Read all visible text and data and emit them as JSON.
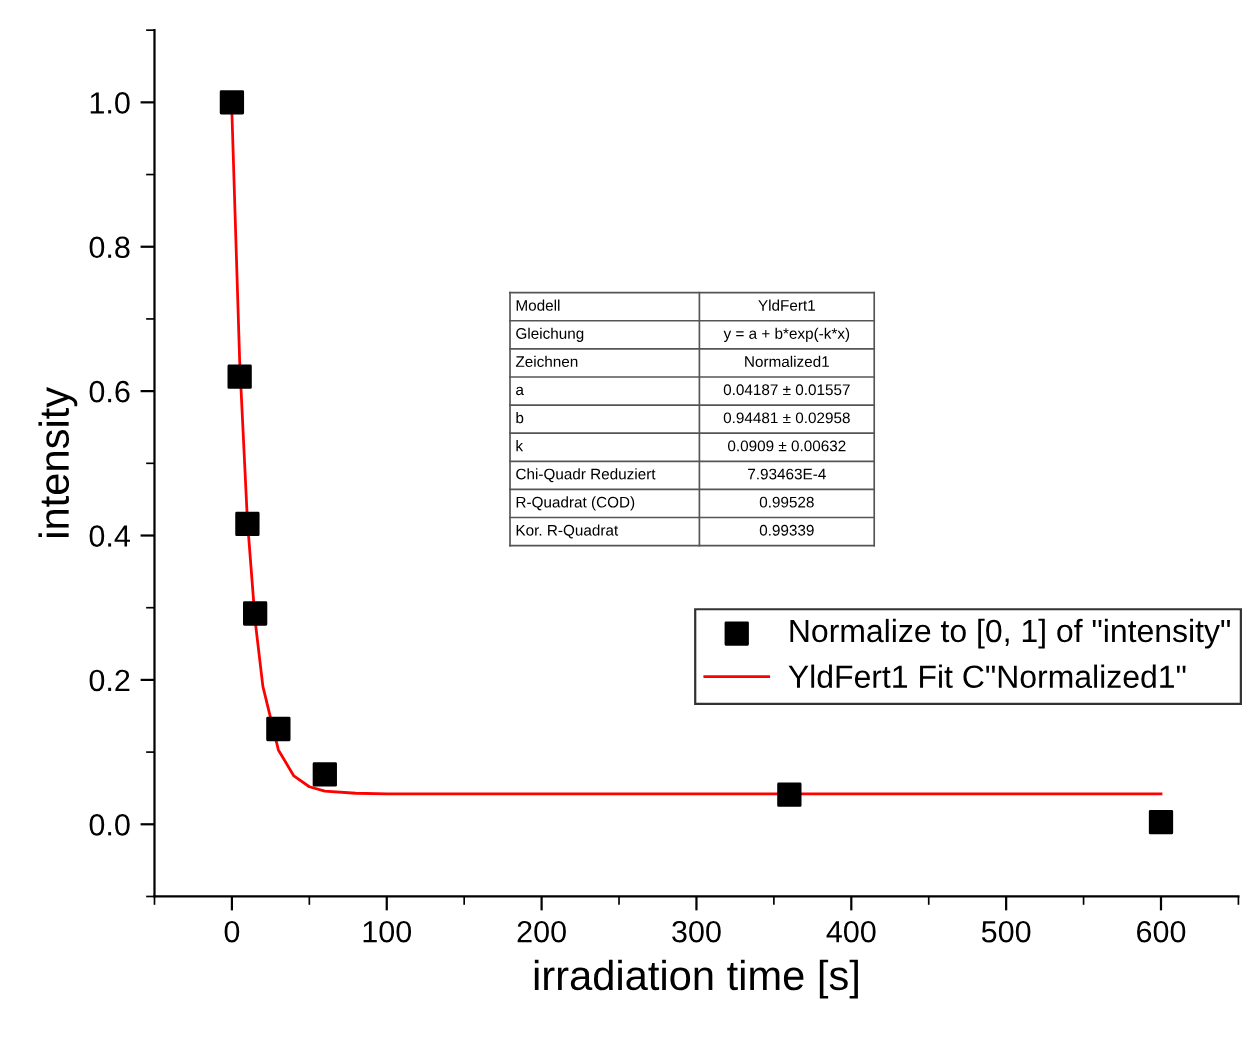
{
  "chart_data": {
    "type": "scatter",
    "xlabel": "irradiation time [s]",
    "ylabel": "intensity",
    "xlim": [
      -50,
      650
    ],
    "xticks": [
      0,
      100,
      200,
      300,
      400,
      500,
      600
    ],
    "ylim": [
      -0.1,
      1.1
    ],
    "yticks": [
      {
        "value": 0,
        "label": "0.0"
      },
      0.2,
      0.4,
      0.6,
      0.8,
      {
        "value": 1,
        "label": "1.0"
      }
    ],
    "grid": false,
    "legend": "right",
    "marker": "square",
    "series": [
      {
        "name": "Normalize to [0, 1] of \"intensity\"",
        "color": "#000000",
        "x": [
          0,
          5,
          10,
          15,
          30,
          60,
          360,
          600
        ],
        "values": [
          1.0,
          0.62,
          0.416,
          0.292,
          0.132,
          0.069,
          0.041,
          0.003
        ]
      },
      {
        "name": "YldFert1 Fit C\"Normalized1\"",
        "type": "line",
        "color": "#ff0000",
        "marker": "none",
        "x": [
          0,
          5,
          10,
          15,
          20,
          30,
          40,
          50,
          60,
          80,
          100,
          200,
          400,
          600
        ],
        "values": [
          0.986,
          0.642,
          0.421,
          0.282,
          0.191,
          0.103,
          0.067,
          0.052,
          0.046,
          0.043,
          0.042,
          0.042,
          0.042,
          0.042
        ]
      }
    ],
    "annotations": [
      "Modell",
      "YldFert1",
      "Gleichung",
      "y = a + b*exp(-k*x)",
      "Zeichnen",
      "Normalized1",
      "a",
      "0.04187 ± 0.01557",
      "b",
      "0.94481 ± 0.02958",
      "k",
      "0.0909 ± 0.00632",
      "Chi-Quadr Reduziert",
      "7.93463E-4",
      "R-Quadrat (COD)",
      "0.99528",
      "Kor. R-Quadrat",
      "0.99339"
    ]
  }
}
